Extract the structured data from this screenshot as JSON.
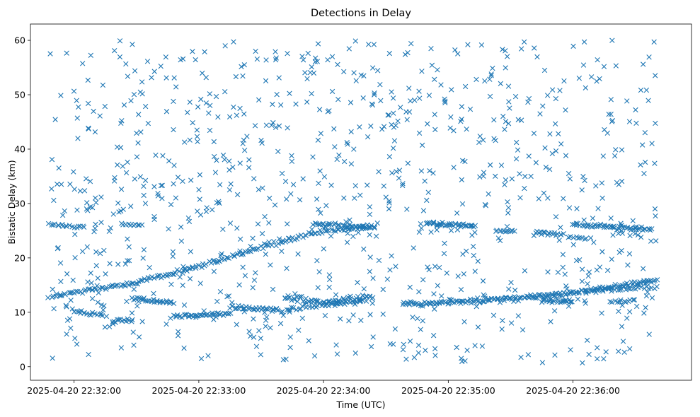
{
  "chart_data": {
    "type": "scatter",
    "title": "Detections in Delay",
    "xlabel": "Time (UTC)",
    "ylabel": "Bistatic Delay (km)",
    "marker": "x",
    "color": "#1f77b4",
    "grid": false,
    "xlim": [
      "2025-04-20 22:31:39",
      "2025-04-20 22:36:57"
    ],
    "ylim": [
      -2.5,
      63
    ],
    "xticks": [
      "2025-04-20 22:32:00",
      "2025-04-20 22:33:00",
      "2025-04-20 22:34:00",
      "2025-04-20 22:35:00",
      "2025-04-20 22:36:00"
    ],
    "yticks": [
      0,
      10,
      20,
      30,
      40,
      50,
      60
    ],
    "tracks": [
      {
        "x": [
          "2025-04-20 22:31:48",
          "2025-04-20 22:32:30",
          "2025-04-20 22:33:00",
          "2025-04-20 22:33:30",
          "2025-04-20 22:34:00",
          "2025-04-20 22:34:24"
        ],
        "y": [
          12.8,
          15.5,
          18.4,
          22.0,
          24.9,
          25.7
        ],
        "density": 170,
        "spread": 0.35
      },
      {
        "x": [
          "2025-04-20 22:31:48",
          "2025-04-20 22:32:05"
        ],
        "y": [
          26.1,
          25.7
        ],
        "density": 18,
        "spread": 0.25
      },
      {
        "x": [
          "2025-04-20 22:32:23",
          "2025-04-20 22:32:33"
        ],
        "y": [
          26.2,
          25.8
        ],
        "density": 10,
        "spread": 0.25
      },
      {
        "x": [
          "2025-04-20 22:32:00",
          "2025-04-20 22:32:12"
        ],
        "y": [
          10.0,
          9.7
        ],
        "density": 14,
        "spread": 0.3
      },
      {
        "x": [
          "2025-04-20 22:32:18",
          "2025-04-20 22:32:28"
        ],
        "y": [
          8.2,
          8.6
        ],
        "density": 14,
        "spread": 0.3
      },
      {
        "x": [
          "2025-04-20 22:32:28",
          "2025-04-20 22:32:48"
        ],
        "y": [
          12.5,
          11.8
        ],
        "density": 30,
        "spread": 0.3
      },
      {
        "x": [
          "2025-04-20 22:32:48",
          "2025-04-20 22:33:15"
        ],
        "y": [
          9.3,
          9.7
        ],
        "density": 40,
        "spread": 0.3
      },
      {
        "x": [
          "2025-04-20 22:33:15",
          "2025-04-20 22:33:40"
        ],
        "y": [
          11.0,
          10.4
        ],
        "density": 35,
        "spread": 0.35
      },
      {
        "x": [
          "2025-04-20 22:33:42",
          "2025-04-20 22:34:00",
          "2025-04-20 22:34:24"
        ],
        "y": [
          12.8,
          11.7,
          12.9
        ],
        "density": 60,
        "spread": 0.5
      },
      {
        "x": [
          "2025-04-20 22:33:42",
          "2025-04-20 22:34:20"
        ],
        "y": [
          10.5,
          12.2
        ],
        "density": 40,
        "spread": 0.45
      },
      {
        "x": [
          "2025-04-20 22:33:55",
          "2025-04-20 22:34:24"
        ],
        "y": [
          26.4,
          25.6
        ],
        "density": 40,
        "spread": 0.3
      },
      {
        "x": [
          "2025-04-20 22:34:38",
          "2025-04-20 22:35:00",
          "2025-04-20 22:35:30",
          "2025-04-20 22:36:00",
          "2025-04-20 22:36:40"
        ],
        "y": [
          11.4,
          11.8,
          12.5,
          13.5,
          15.9
        ],
        "density": 190,
        "spread": 0.35
      },
      {
        "x": [
          "2025-04-20 22:34:50",
          "2025-04-20 22:35:13"
        ],
        "y": [
          26.4,
          25.8
        ],
        "density": 40,
        "spread": 0.3
      },
      {
        "x": [
          "2025-04-20 22:35:23",
          "2025-04-20 22:35:32"
        ],
        "y": [
          25.0,
          24.9
        ],
        "density": 12,
        "spread": 0.2
      },
      {
        "x": [
          "2025-04-20 22:35:42",
          "2025-04-20 22:35:55"
        ],
        "y": [
          24.7,
          24.3
        ],
        "density": 20,
        "spread": 0.25
      },
      {
        "x": [
          "2025-04-20 22:35:45",
          "2025-04-20 22:36:00"
        ],
        "y": [
          12.2,
          12.0
        ],
        "density": 25,
        "spread": 0.3
      },
      {
        "x": [
          "2025-04-20 22:36:00",
          "2025-04-20 22:36:38"
        ],
        "y": [
          26.2,
          25.2
        ],
        "density": 55,
        "spread": 0.3
      },
      {
        "x": [
          "2025-04-20 22:35:58",
          "2025-04-20 22:36:08"
        ],
        "y": [
          23.9,
          23.6
        ],
        "density": 10,
        "spread": 0.2
      },
      {
        "x": [
          "2025-04-20 22:36:10",
          "2025-04-20 22:36:40"
        ],
        "y": [
          14.0,
          14.5
        ],
        "density": 25,
        "spread": 0.35
      },
      {
        "x": [
          "2025-04-20 22:36:18",
          "2025-04-20 22:36:30"
        ],
        "y": [
          12.0,
          12.2
        ],
        "density": 12,
        "spread": 0.3
      }
    ],
    "clutter": {
      "count": 900,
      "x_range": [
        "2025-04-20 22:31:48",
        "2025-04-20 22:36:40"
      ],
      "y_range": [
        0.5,
        60
      ]
    }
  }
}
